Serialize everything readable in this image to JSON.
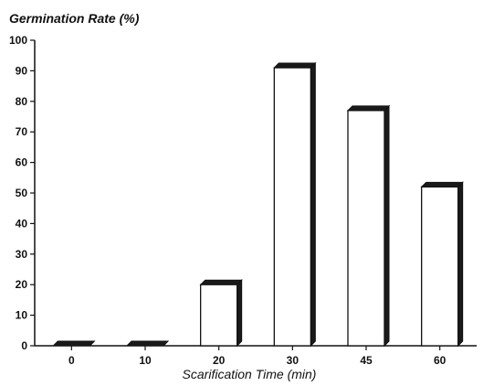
{
  "chart_data": {
    "type": "bar",
    "title": "Germination Rate (%)",
    "xlabel": "Scarification Time (min)",
    "ylabel": "",
    "categories": [
      "0",
      "10",
      "20",
      "30",
      "45",
      "60"
    ],
    "values": [
      0,
      0,
      20,
      91,
      77,
      52
    ],
    "ylim": [
      0,
      100
    ],
    "yticks": [
      0,
      10,
      20,
      30,
      40,
      50,
      60,
      70,
      80,
      90,
      100
    ],
    "grid": false,
    "legend": "none",
    "style": "3d",
    "colors": {
      "bar_face": "#ffffff",
      "bar_edge": "#111111",
      "bar_depth": "#1a1a1a"
    }
  }
}
